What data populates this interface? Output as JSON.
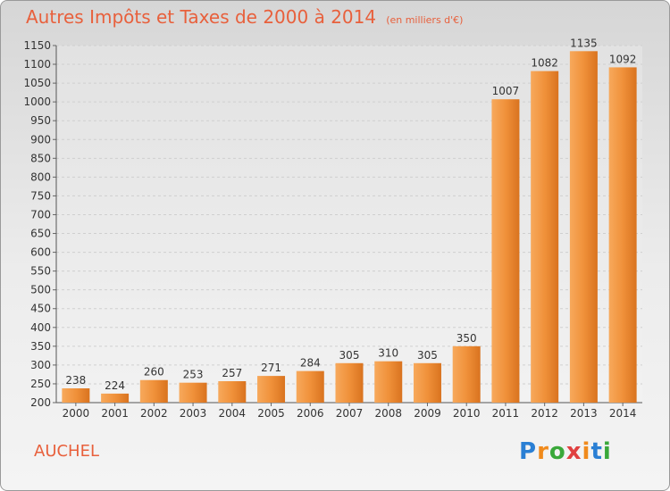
{
  "chart_data": {
    "type": "bar",
    "title": "Autres Impôts et Taxes de 2000 à 2014",
    "unit_note": "(en milliers d'€)",
    "categories": [
      "2000",
      "2001",
      "2002",
      "2003",
      "2004",
      "2005",
      "2006",
      "2007",
      "2008",
      "2009",
      "2010",
      "2011",
      "2012",
      "2013",
      "2014"
    ],
    "values": [
      238,
      224,
      260,
      253,
      257,
      271,
      284,
      305,
      310,
      305,
      350,
      1007,
      1082,
      1135,
      1092
    ],
    "ylim": [
      200,
      1150
    ],
    "yticks": [
      200,
      250,
      300,
      350,
      400,
      450,
      500,
      550,
      600,
      650,
      700,
      750,
      800,
      850,
      900,
      950,
      1000,
      1050,
      1100,
      1150
    ],
    "grid": true,
    "bar_color": "#f0913a"
  },
  "location": "AUCHEL",
  "logo": {
    "text": "Proxiti",
    "letter_colors": [
      "#2a7fd4",
      "#f08a1c",
      "#3aa83a",
      "#e04040",
      "#f08a1c",
      "#2a7fd4",
      "#3aa83a"
    ]
  }
}
